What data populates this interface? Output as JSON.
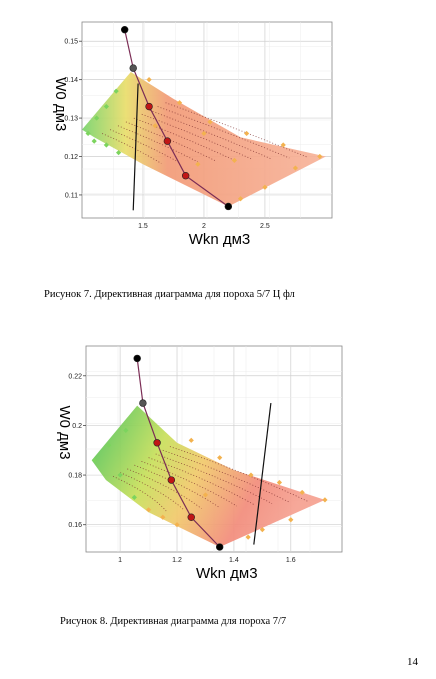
{
  "page_number": "14",
  "chart_data": [
    {
      "type": "scatter",
      "xlabel": "Wkn дм3",
      "ylabel": "W0 дм3",
      "xticks": [
        "1.5",
        "2",
        "2.5"
      ],
      "xtick_values": [
        1.5,
        2.0,
        2.5
      ],
      "yticks": [
        "0.11",
        "0.12",
        "0.13",
        "0.14",
        "0.15"
      ],
      "ytick_values": [
        0.11,
        0.12,
        0.13,
        0.14,
        0.15
      ],
      "xlim": [
        1.0,
        3.05
      ],
      "ylim": [
        0.104,
        0.155
      ],
      "grid": true,
      "caption": "Рисунок 7. Директивная диаграмма для пороха 5/7 Ц фл",
      "region": [
        [
          1.0,
          0.127
        ],
        [
          1.4,
          0.142
        ],
        [
          1.75,
          0.135
        ],
        [
          2.3,
          0.125
        ],
        [
          3.0,
          0.12
        ],
        [
          2.2,
          0.107
        ],
        [
          1.5,
          0.118
        ],
        [
          1.1,
          0.125
        ]
      ],
      "key_points": [
        [
          1.35,
          0.153
        ],
        [
          1.42,
          0.143
        ],
        [
          1.55,
          0.133
        ],
        [
          1.7,
          0.124
        ],
        [
          1.85,
          0.115
        ],
        [
          2.2,
          0.107
        ]
      ],
      "edge_points": [
        [
          1.05,
          0.126
        ],
        [
          1.12,
          0.13
        ],
        [
          1.2,
          0.133
        ],
        [
          1.28,
          0.137
        ],
        [
          1.55,
          0.14
        ],
        [
          1.8,
          0.134
        ],
        [
          2.05,
          0.129
        ],
        [
          2.35,
          0.126
        ],
        [
          2.65,
          0.123
        ],
        [
          2.95,
          0.12
        ],
        [
          2.75,
          0.117
        ],
        [
          2.5,
          0.112
        ],
        [
          2.3,
          0.109
        ],
        [
          1.3,
          0.121
        ],
        [
          1.2,
          0.123
        ],
        [
          1.1,
          0.124
        ],
        [
          2.0,
          0.126
        ],
        [
          2.25,
          0.119
        ],
        [
          1.6,
          0.128
        ],
        [
          1.95,
          0.118
        ]
      ],
      "line": [
        [
          1.46,
          0.139
        ],
        [
          1.42,
          0.106
        ]
      ]
    },
    {
      "type": "scatter",
      "xlabel": "Wkn дм3",
      "ylabel": "W0 дм3",
      "xticks": [
        "1",
        "1.2",
        "1.4",
        "1.6"
      ],
      "xtick_values": [
        1.0,
        1.2,
        1.4,
        1.6
      ],
      "yticks": [
        "0.16",
        "0.18",
        "0.2",
        "0.22"
      ],
      "ytick_values": [
        0.16,
        0.18,
        0.2,
        0.22
      ],
      "xlim": [
        0.88,
        1.78
      ],
      "ylim": [
        0.149,
        0.232
      ],
      "grid": true,
      "caption": "Рисунок 8. Директивная диаграмма для пороха 7/7",
      "region": [
        [
          0.9,
          0.186
        ],
        [
          1.06,
          0.208
        ],
        [
          1.2,
          0.193
        ],
        [
          1.4,
          0.182
        ],
        [
          1.72,
          0.17
        ],
        [
          1.35,
          0.151
        ],
        [
          1.1,
          0.165
        ],
        [
          0.95,
          0.178
        ]
      ],
      "key_points": [
        [
          1.06,
          0.227
        ],
        [
          1.08,
          0.209
        ],
        [
          1.13,
          0.193
        ],
        [
          1.18,
          0.178
        ],
        [
          1.25,
          0.163
        ],
        [
          1.35,
          0.151
        ]
      ],
      "edge_points": [
        [
          0.91,
          0.186
        ],
        [
          0.96,
          0.192
        ],
        [
          1.02,
          0.198
        ],
        [
          1.0,
          0.18
        ],
        [
          1.05,
          0.171
        ],
        [
          1.1,
          0.166
        ],
        [
          1.25,
          0.194
        ],
        [
          1.35,
          0.187
        ],
        [
          1.46,
          0.18
        ],
        [
          1.56,
          0.177
        ],
        [
          1.64,
          0.173
        ],
        [
          1.72,
          0.17
        ],
        [
          1.6,
          0.162
        ],
        [
          1.5,
          0.158
        ],
        [
          1.45,
          0.155
        ],
        [
          1.2,
          0.16
        ],
        [
          1.15,
          0.163
        ],
        [
          1.3,
          0.172
        ]
      ],
      "line": [
        [
          1.53,
          0.209
        ],
        [
          1.47,
          0.152
        ]
      ]
    }
  ]
}
